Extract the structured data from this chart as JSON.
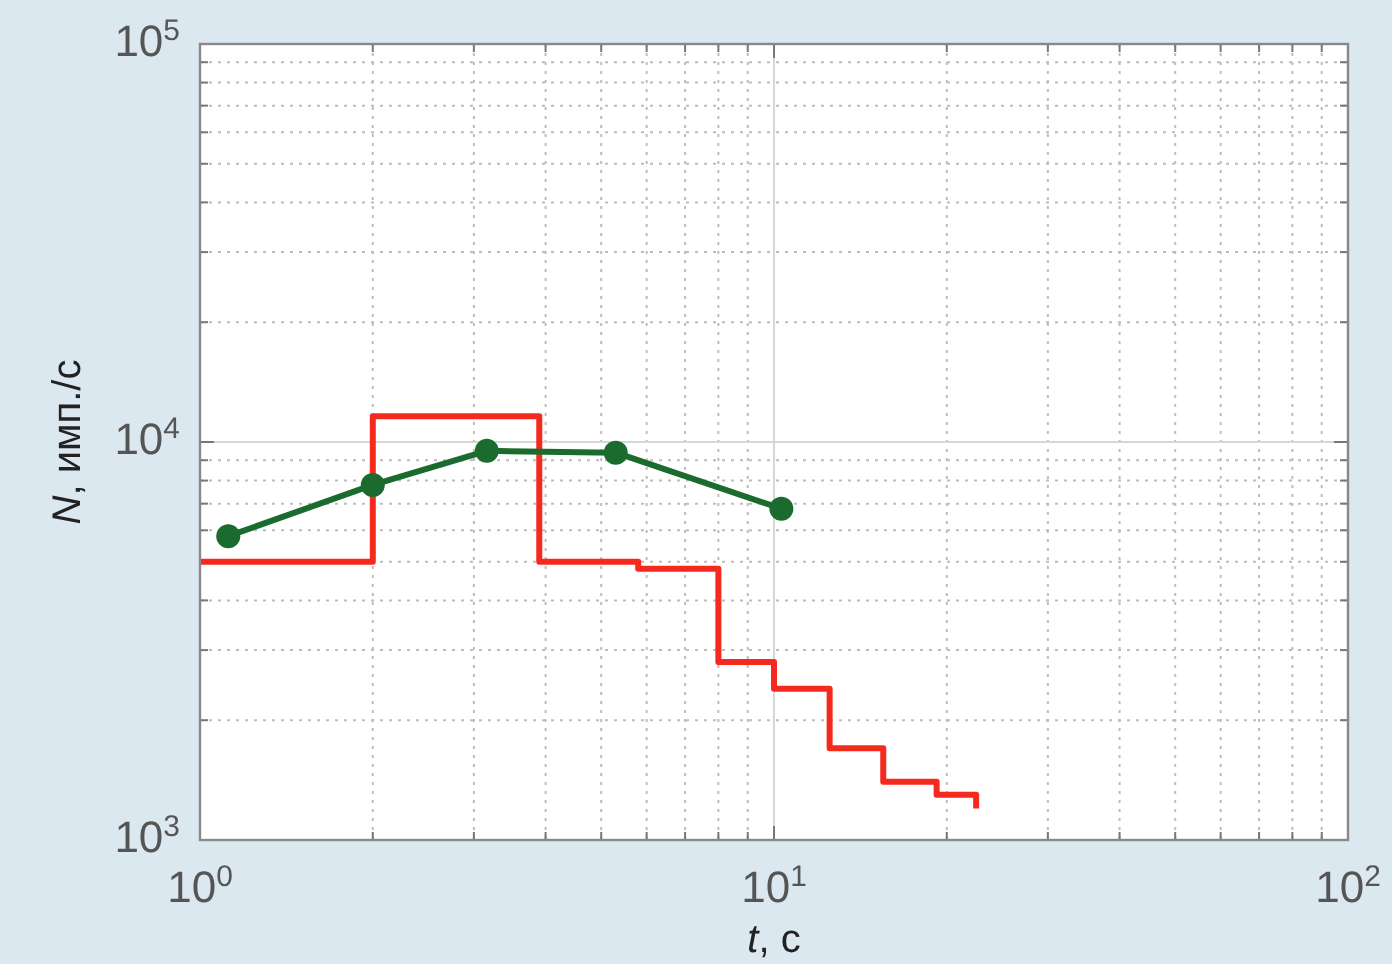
{
  "chart_data": {
    "type": "step",
    "xlabel": "t, с",
    "ylabel": "N, имп./с",
    "log": "xy",
    "xlim": [
      1,
      100
    ],
    "ylim": [
      1000,
      100000
    ],
    "xticks": [
      {
        "value": 1,
        "label": "10$^{0}$"
      },
      {
        "value": 2,
        "label": null
      },
      {
        "value": 3,
        "label": null
      },
      {
        "value": 4,
        "label": null
      },
      {
        "value": 5,
        "label": null
      },
      {
        "value": 6,
        "label": null
      },
      {
        "value": 7,
        "label": null
      },
      {
        "value": 8,
        "label": null
      },
      {
        "value": 9,
        "label": null
      },
      {
        "value": 10,
        "label": "10$^{1}$"
      },
      {
        "value": 20,
        "label": null
      },
      {
        "value": 30,
        "label": null
      },
      {
        "value": 40,
        "label": null
      },
      {
        "value": 50,
        "label": null
      },
      {
        "value": 60,
        "label": null
      },
      {
        "value": 70,
        "label": null
      },
      {
        "value": 80,
        "label": null
      },
      {
        "value": 90,
        "label": null
      },
      {
        "value": 100,
        "label": "10$^{2}$"
      }
    ],
    "yticks": [
      {
        "value": 1000,
        "label": "10$^{3}$"
      },
      {
        "value": 2000,
        "label": null
      },
      {
        "value": 3000,
        "label": null
      },
      {
        "value": 4000,
        "label": null
      },
      {
        "value": 5000,
        "label": null
      },
      {
        "value": 6000,
        "label": null
      },
      {
        "value": 7000,
        "label": null
      },
      {
        "value": 8000,
        "label": null
      },
      {
        "value": 9000,
        "label": null
      },
      {
        "value": 10000,
        "label": "10$^{4}$"
      },
      {
        "value": 20000,
        "label": null
      },
      {
        "value": 30000,
        "label": null
      },
      {
        "value": 40000,
        "label": null
      },
      {
        "value": 50000,
        "label": null
      },
      {
        "value": 60000,
        "label": null
      },
      {
        "value": 70000,
        "label": null
      },
      {
        "value": 80000,
        "label": null
      },
      {
        "value": 90000,
        "label": null
      },
      {
        "value": 100000,
        "label": "10$^{5}$"
      }
    ],
    "grid": true,
    "series": [
      {
        "color": "#f52a1e",
        "marker": "none",
        "x": [
          1,
          2,
          3.9,
          5.8,
          8,
          10,
          12.5,
          15.5,
          19.2,
          22.5
        ],
        "values": [
          5000,
          11600,
          5000,
          4800,
          2800,
          2400,
          1700,
          1400,
          1300,
          1200
        ]
      },
      {
        "type": "line",
        "color": "#1b6b2e",
        "marker": "circle",
        "x": [
          1.12,
          2,
          3.16,
          5.3,
          10.3
        ],
        "values": [
          5800,
          7800,
          9500,
          9400,
          6800
        ]
      }
    ]
  }
}
